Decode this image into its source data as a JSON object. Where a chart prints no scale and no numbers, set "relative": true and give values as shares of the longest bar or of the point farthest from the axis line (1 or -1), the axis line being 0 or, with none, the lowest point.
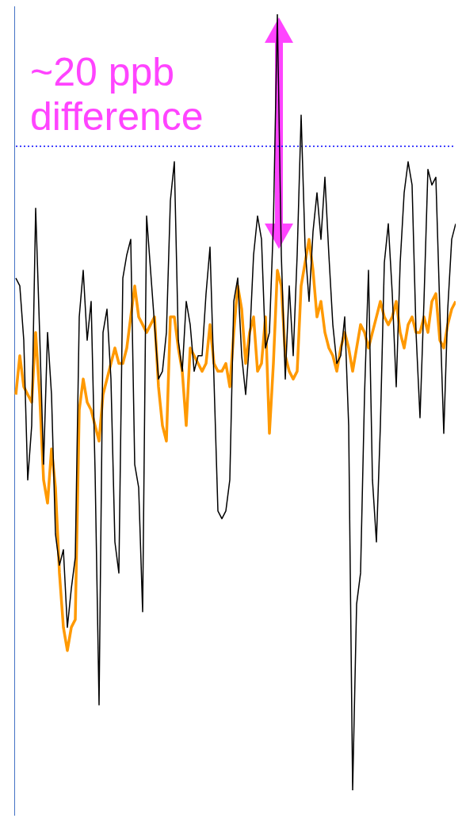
{
  "chart_data": {
    "type": "line",
    "relative": true,
    "marker": "none",
    "line_style": "solid",
    "categories": [
      null,
      null,
      null,
      null,
      null,
      null,
      null,
      null,
      null,
      null,
      null,
      null,
      null,
      null,
      null,
      null,
      null,
      null,
      null,
      null,
      null,
      null,
      null,
      null,
      null,
      null,
      null,
      null,
      null,
      null,
      null,
      null,
      null,
      null,
      null,
      null,
      null,
      null,
      null,
      null,
      null,
      null,
      null,
      null,
      null,
      null,
      null,
      null,
      null,
      null,
      null,
      null,
      null,
      null,
      null,
      null,
      null,
      null,
      null,
      null,
      null,
      null,
      null,
      null,
      null,
      null,
      null,
      null,
      null,
      null,
      null,
      null,
      null,
      null,
      null,
      null,
      null,
      null,
      null,
      null,
      null,
      null,
      null,
      null,
      null,
      null,
      null,
      null,
      null,
      null,
      null,
      null,
      null,
      null,
      null,
      null,
      null,
      null,
      null,
      null,
      null,
      null,
      null,
      null,
      null,
      null,
      null,
      null,
      null,
      null,
      null,
      null
    ],
    "series": [
      {
        "color": "#000000",
        "values": [
          0.66,
          0.65,
          0.58,
          0.4,
          0.47,
          0.75,
          0.59,
          0.42,
          0.59,
          0.51,
          0.33,
          0.29,
          0.31,
          0.21,
          0.26,
          0.3,
          0.61,
          0.67,
          0.58,
          0.63,
          0.41,
          0.11,
          0.59,
          0.62,
          0.53,
          0.32,
          0.28,
          0.66,
          0.69,
          0.71,
          0.42,
          0.39,
          0.23,
          0.74,
          0.67,
          0.6,
          0.53,
          0.54,
          0.59,
          0.76,
          0.81,
          0.58,
          0.54,
          0.63,
          0.6,
          0.54,
          0.56,
          0.56,
          0.64,
          0.7,
          0.53,
          0.36,
          0.35,
          0.36,
          0.4,
          0.63,
          0.66,
          0.56,
          0.51,
          0.58,
          0.69,
          0.74,
          0.71,
          0.57,
          0.59,
          0.73,
          1.0,
          0.69,
          0.53,
          0.65,
          0.56,
          0.69,
          0.87,
          0.7,
          0.63,
          0.72,
          0.77,
          0.71,
          0.79,
          0.69,
          0.6,
          0.55,
          0.56,
          0.61,
          0.47,
          0.0,
          0.24,
          0.28,
          0.51,
          0.67,
          0.4,
          0.32,
          0.47,
          0.68,
          0.73,
          0.64,
          0.52,
          0.68,
          0.77,
          0.81,
          0.78,
          0.59,
          0.48,
          0.63,
          0.8,
          0.78,
          0.79,
          0.62,
          0.46,
          0.62,
          0.71,
          0.73
        ]
      },
      {
        "color": "#ff9900",
        "values": [
          0.51,
          0.56,
          0.52,
          0.51,
          0.5,
          0.59,
          0.51,
          0.4,
          0.37,
          0.44,
          0.39,
          0.28,
          0.21,
          0.18,
          0.21,
          0.22,
          0.49,
          0.53,
          0.5,
          0.49,
          0.47,
          0.45,
          0.51,
          0.53,
          0.55,
          0.57,
          0.55,
          0.55,
          0.57,
          0.61,
          0.65,
          0.61,
          0.6,
          0.59,
          0.6,
          0.61,
          0.52,
          0.47,
          0.45,
          0.61,
          0.61,
          0.57,
          0.54,
          0.47,
          0.57,
          0.56,
          0.55,
          0.54,
          0.55,
          0.6,
          0.55,
          0.54,
          0.54,
          0.55,
          0.52,
          0.59,
          0.65,
          0.62,
          0.55,
          0.59,
          0.61,
          0.54,
          0.55,
          0.61,
          0.46,
          0.55,
          0.67,
          0.65,
          0.56,
          0.54,
          0.53,
          0.54,
          0.65,
          0.68,
          0.71,
          0.67,
          0.61,
          0.63,
          0.59,
          0.57,
          0.56,
          0.54,
          0.57,
          0.59,
          0.57,
          0.54,
          0.57,
          0.6,
          0.59,
          0.57,
          0.59,
          0.61,
          0.63,
          0.61,
          0.6,
          0.61,
          0.63,
          0.59,
          0.57,
          0.6,
          0.61,
          0.59,
          0.59,
          0.61,
          0.59,
          0.63,
          0.64,
          0.58,
          0.57,
          0.6,
          0.62,
          0.63
        ]
      }
    ],
    "ref_lines": [
      {
        "axis": "y",
        "value": 0.83,
        "color": "#0000ff",
        "line_style": "dotted"
      }
    ],
    "annotations": [
      "~20 ppb difference"
    ]
  }
}
